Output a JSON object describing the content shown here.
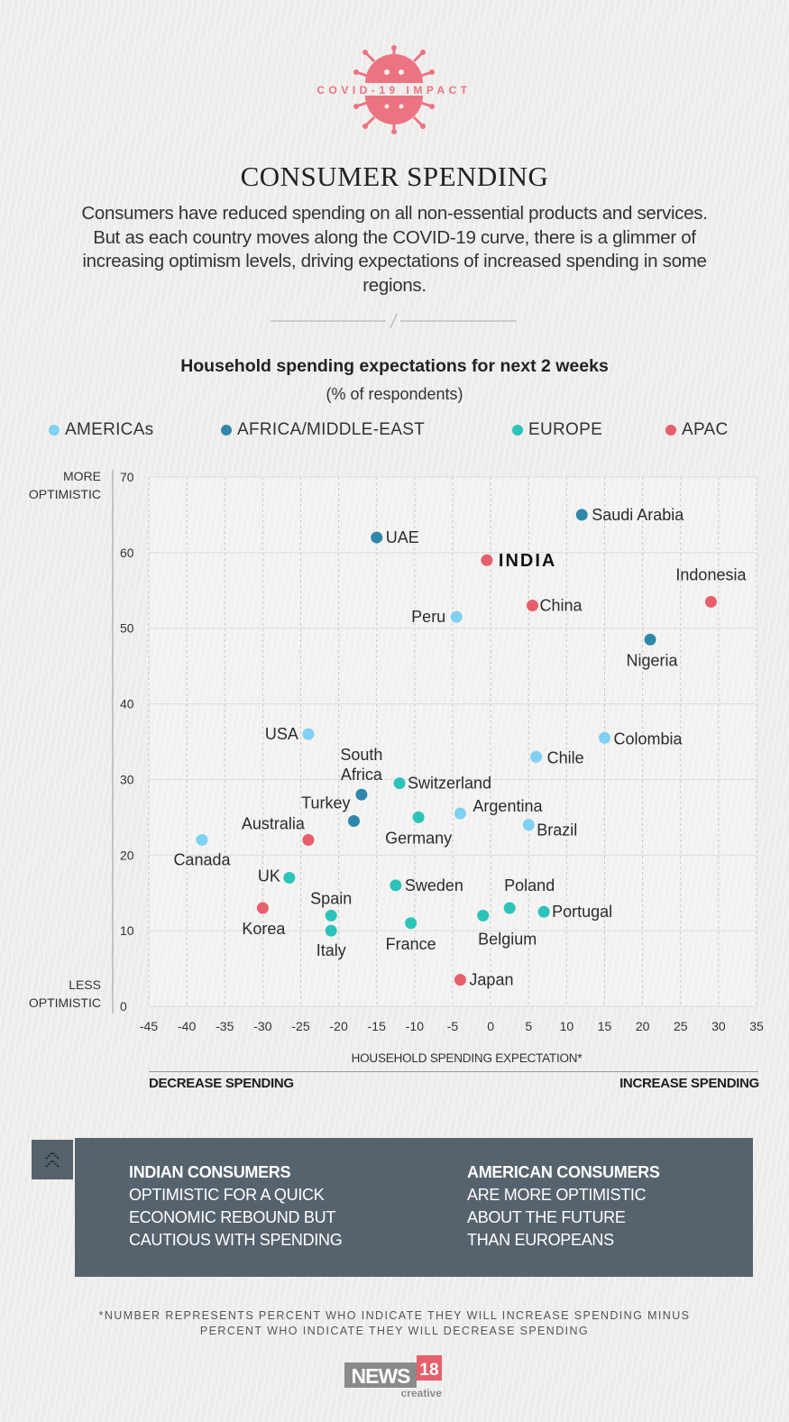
{
  "header": {
    "logo_text": "COVID-19 IMPACT",
    "title": "CONSUMER SPENDING",
    "intro": "Consumers have reduced spending on all non-essential products and services. But as each country moves along the COVID-19 curve, there is a glimmer of increasing optimism levels, driving expectations of increased spending in some regions."
  },
  "colors": {
    "americas": "#7fd0f3",
    "africa_middle_east": "#2f88aa",
    "europe": "#2cc3bb",
    "apac": "#e65f6b",
    "logo": "#ec7382",
    "panel": "#56636d"
  },
  "chart_data": {
    "type": "scatter",
    "title": "Household spending expectations for next 2 weeks",
    "subtitle": "(% of respondents)",
    "xlabel": "HOUSEHOLD SPENDING EXPECTATION*",
    "x_direction_left": "DECREASE SPENDING",
    "x_direction_right": "INCREASE SPENDING",
    "y_top_label": [
      "MORE",
      "OPTIMISTIC"
    ],
    "y_bottom_label": [
      "LESS",
      "OPTIMISTIC"
    ],
    "xlim": [
      -45,
      35
    ],
    "ylim": [
      0,
      70
    ],
    "x_ticks": [
      "-45",
      "-40",
      "-35",
      "-30",
      "-25",
      "-20",
      "-15",
      "-10",
      "-5",
      "0",
      "5",
      "10",
      "15",
      "20",
      "25",
      "30",
      "35"
    ],
    "y_ticks": [
      "0",
      "10",
      "20",
      "30",
      "40",
      "50",
      "60",
      "70"
    ],
    "grid": true,
    "legend_placement": "top",
    "legend": [
      {
        "name": "AMERICAs",
        "key": "americas"
      },
      {
        "name": "AFRICA/MIDDLE-EAST",
        "key": "africa_middle_east"
      },
      {
        "name": "EUROPE",
        "key": "europe"
      },
      {
        "name": "APAC",
        "key": "apac"
      }
    ],
    "points": [
      {
        "label": "Saudi Arabia",
        "region": "africa_middle_east",
        "x": 12,
        "y": 65
      },
      {
        "label": "UAE",
        "region": "africa_middle_east",
        "x": -15,
        "y": 62
      },
      {
        "label": "INDIA",
        "region": "apac",
        "x": -0.5,
        "y": 59
      },
      {
        "label": "Indonesia",
        "region": "apac",
        "x": 29,
        "y": 53.5
      },
      {
        "label": "China",
        "region": "apac",
        "x": 5.5,
        "y": 53
      },
      {
        "label": "Peru",
        "region": "americas",
        "x": -4.5,
        "y": 51.5
      },
      {
        "label": "Nigeria",
        "region": "africa_middle_east",
        "x": 21,
        "y": 48.5
      },
      {
        "label": "USA",
        "region": "americas",
        "x": -24,
        "y": 36
      },
      {
        "label": "Colombia",
        "region": "americas",
        "x": 15,
        "y": 35.5
      },
      {
        "label": "Chile",
        "region": "americas",
        "x": 6,
        "y": 33
      },
      {
        "label": "Switzerland",
        "region": "europe",
        "x": -12,
        "y": 29.5
      },
      {
        "label": "South Africa",
        "region": "africa_middle_east",
        "x": -17,
        "y": 28
      },
      {
        "label": "Turkey",
        "region": "africa_middle_east",
        "x": -18,
        "y": 24.5
      },
      {
        "label": "Germany",
        "region": "europe",
        "x": -9.5,
        "y": 25
      },
      {
        "label": "Argentina",
        "region": "americas",
        "x": -4,
        "y": 25.5
      },
      {
        "label": "Brazil",
        "region": "americas",
        "x": 5,
        "y": 24
      },
      {
        "label": "Australia",
        "region": "apac",
        "x": -24,
        "y": 22
      },
      {
        "label": "Canada",
        "region": "americas",
        "x": -38,
        "y": 22
      },
      {
        "label": "UK",
        "region": "europe",
        "x": -26.5,
        "y": 17
      },
      {
        "label": "Sweden",
        "region": "europe",
        "x": -12.5,
        "y": 16
      },
      {
        "label": "Poland",
        "region": "europe",
        "x": 2.5,
        "y": 13
      },
      {
        "label": "Korea",
        "region": "apac",
        "x": -30,
        "y": 13
      },
      {
        "label": "Spain",
        "region": "europe",
        "x": -21,
        "y": 12
      },
      {
        "label": "Belgium",
        "region": "europe",
        "x": -1,
        "y": 12
      },
      {
        "label": "Portugal",
        "region": "europe",
        "x": 7,
        "y": 12.5
      },
      {
        "label": "France",
        "region": "europe",
        "x": -10.5,
        "y": 11
      },
      {
        "label": "Italy",
        "region": "europe",
        "x": -21,
        "y": 10
      },
      {
        "label": "Japan",
        "region": "apac",
        "x": -4,
        "y": 3.5
      }
    ]
  },
  "panel": {
    "left": {
      "heading": "INDIAN CONSUMERS",
      "lines": [
        "OPTIMISTIC FOR A QUICK",
        "ECONOMIC REBOUND BUT",
        "CAUTIOUS WITH SPENDING"
      ]
    },
    "right": {
      "heading": "AMERICAN CONSUMERS",
      "lines": [
        "ARE MORE OPTIMISTIC",
        "ABOUT THE FUTURE",
        "THAN EUROPEANS"
      ]
    }
  },
  "footnote": [
    "*NUMBER REPRESENTS PERCENT WHO INDICATE THEY WILL INCREASE SPENDING MINUS",
    "PERCENT WHO INDICATE THEY WILL DECREASE SPENDING"
  ],
  "brand": {
    "name": "NEWS",
    "number": "18",
    "sub": "creative"
  }
}
